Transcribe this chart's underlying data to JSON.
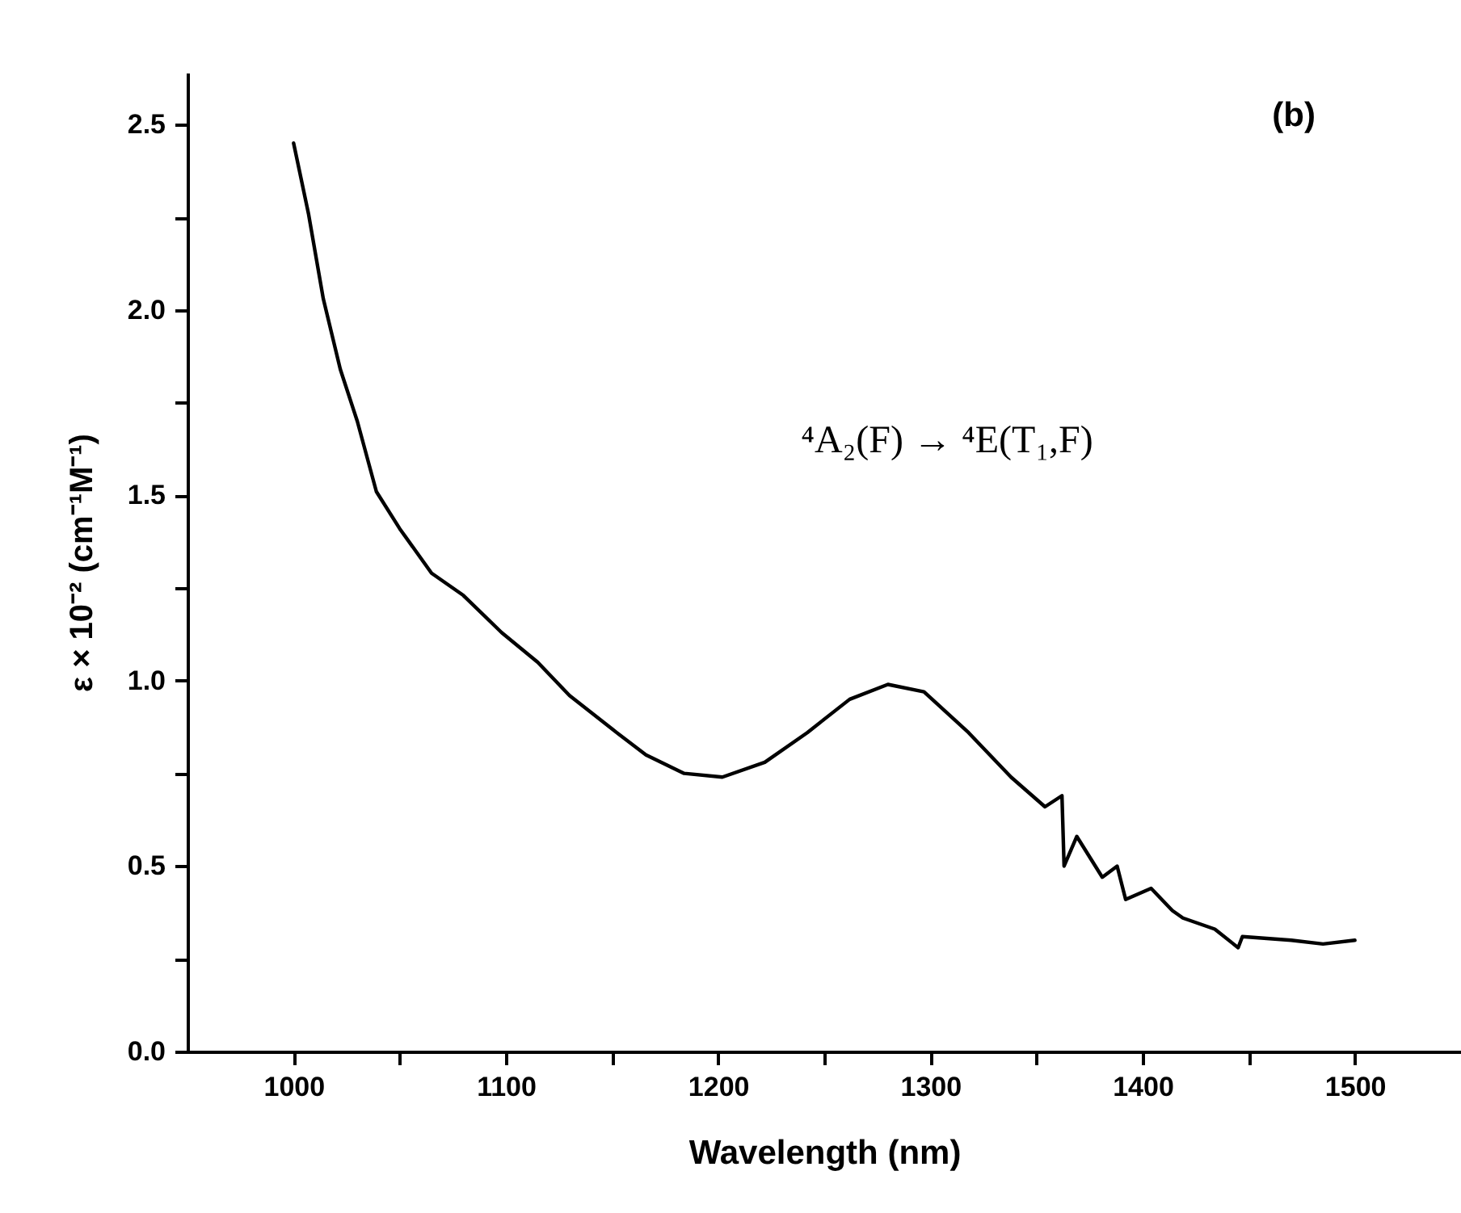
{
  "chart_data": {
    "type": "line",
    "xlabel": "Wavelength (nm)",
    "ylabel": "ε × 10⁻² (cm⁻¹M⁻¹)",
    "x": [
      1000,
      1007,
      1014,
      1022,
      1030,
      1039,
      1050,
      1065,
      1080,
      1098,
      1115,
      1130,
      1150,
      1166,
      1184,
      1202,
      1222,
      1242,
      1262,
      1280,
      1297,
      1318,
      1338,
      1354,
      1362,
      1363,
      1369,
      1381,
      1388,
      1392,
      1404,
      1414,
      1419,
      1434,
      1445,
      1447,
      1470,
      1485,
      1500
    ],
    "series": [
      {
        "color": "#000000",
        "line_style": "solid",
        "values": [
          2.45,
          2.26,
          2.03,
          1.84,
          1.7,
          1.51,
          1.41,
          1.29,
          1.23,
          1.13,
          1.05,
          0.96,
          0.87,
          0.8,
          0.75,
          0.74,
          0.78,
          0.86,
          0.95,
          0.99,
          0.97,
          0.86,
          0.74,
          0.66,
          0.69,
          0.5,
          0.58,
          0.47,
          0.5,
          0.41,
          0.44,
          0.38,
          0.36,
          0.33,
          0.28,
          0.31,
          0.3,
          0.29,
          0.3
        ]
      }
    ],
    "xlim": [
      950,
      1550
    ],
    "xticks": [
      1000,
      {
        "value": 1050,
        "label": null
      },
      1100,
      {
        "value": 1150,
        "label": null
      },
      1200,
      {
        "value": 1250,
        "label": null
      },
      1300,
      {
        "value": 1350,
        "label": null
      },
      1400,
      {
        "value": 1450,
        "label": null
      },
      1500
    ],
    "ylim": [
      0,
      2.64
    ],
    "yticks": [
      {
        "value": 0,
        "label": "0.0"
      },
      {
        "value": 0.25,
        "label": null
      },
      0.5,
      {
        "value": 0.75,
        "label": null
      },
      {
        "value": 1,
        "label": "1.0"
      },
      {
        "value": 1.25,
        "label": null
      },
      1.5,
      {
        "value": 1.75,
        "label": null
      },
      {
        "value": 2,
        "label": "2.0"
      },
      {
        "value": 2.25,
        "label": null
      },
      2.5
    ],
    "annotations": [
      "⁴A₂(F) → ⁴E(T₁,F)",
      "(b)"
    ]
  }
}
